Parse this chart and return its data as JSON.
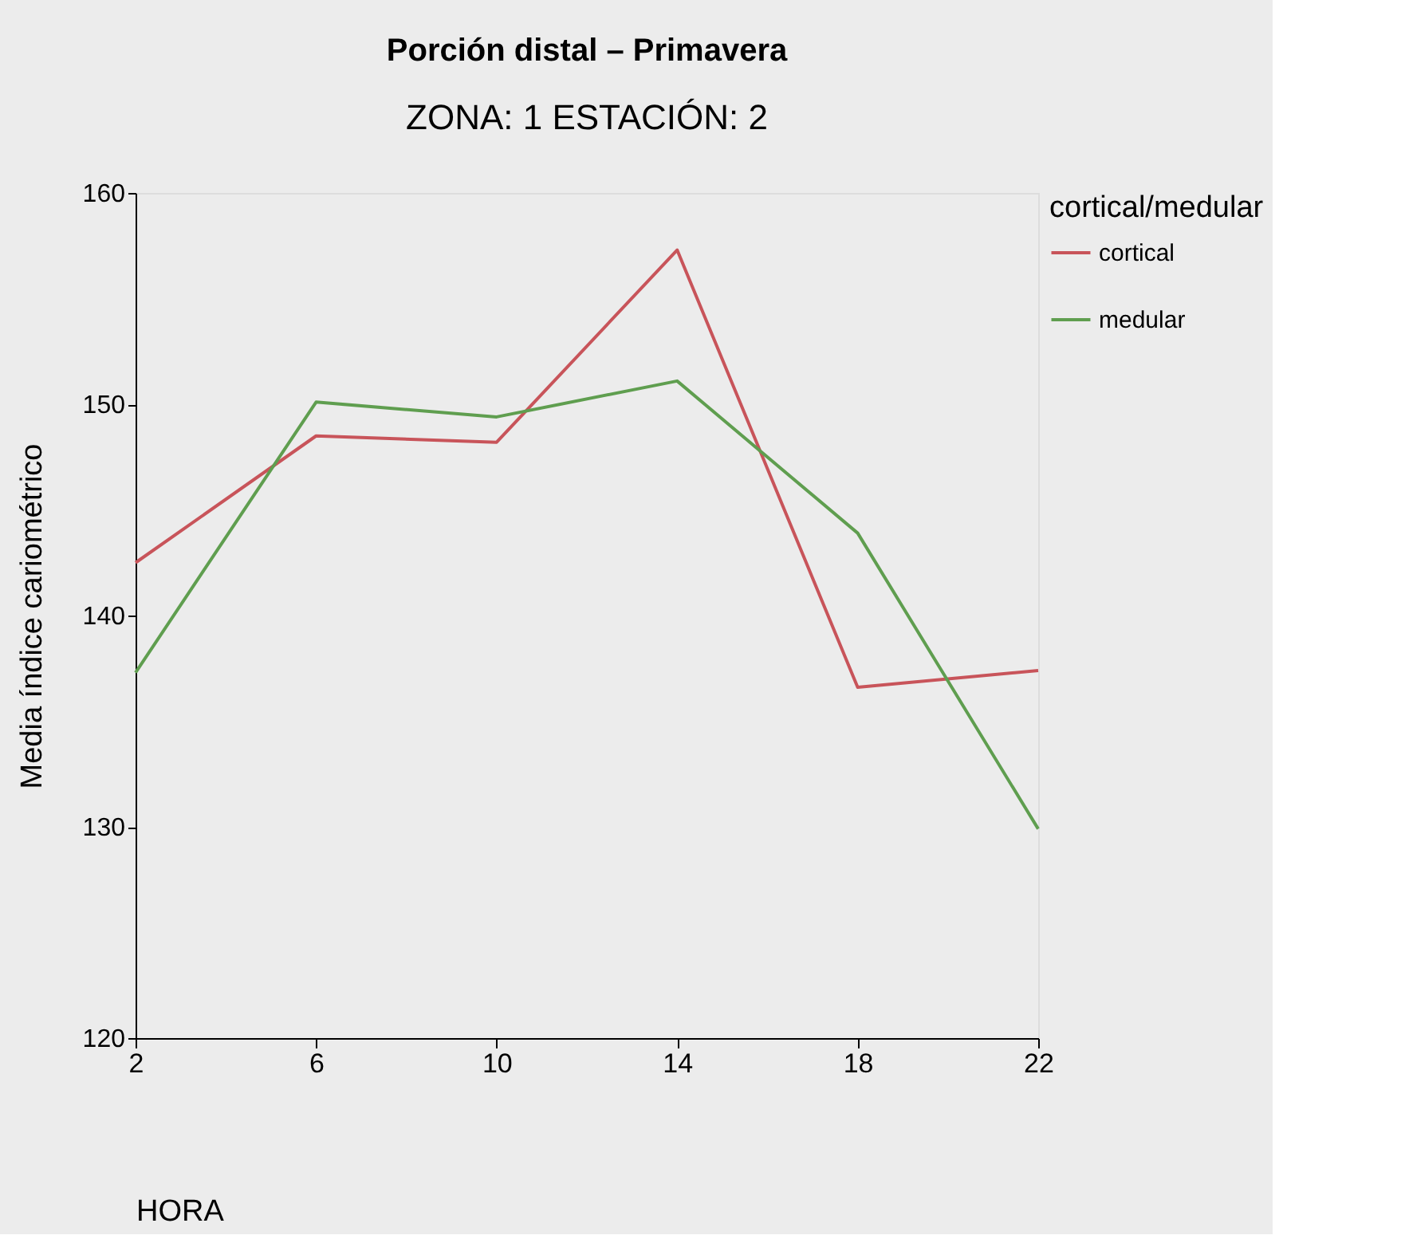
{
  "chart_data": {
    "type": "line",
    "title": "Porción distal – Primavera",
    "subtitle": "ZONA:  1    ESTACIÓN:        2",
    "xlabel": "HORA",
    "ylabel": "Media índice cariométrico",
    "legend_title": "cortical/medular",
    "x": [
      2,
      6,
      10,
      14,
      18,
      22
    ],
    "xlim": [
      2,
      22
    ],
    "xticks": [
      2,
      6,
      10,
      14,
      18,
      22
    ],
    "ylim": [
      120,
      160
    ],
    "yticks": [
      120,
      130,
      140,
      150,
      160
    ],
    "grid": false,
    "legend": "right",
    "marker": "none",
    "line_style": "solid",
    "series": [
      {
        "name": "cortical",
        "color": "#c8545a",
        "values": [
          142.5,
          148.5,
          148.2,
          157.3,
          136.6,
          137.4
        ]
      },
      {
        "name": "medular",
        "color": "#5f9e4f",
        "values": [
          137.3,
          150.1,
          149.4,
          151.1,
          143.9,
          129.9
        ]
      }
    ]
  }
}
